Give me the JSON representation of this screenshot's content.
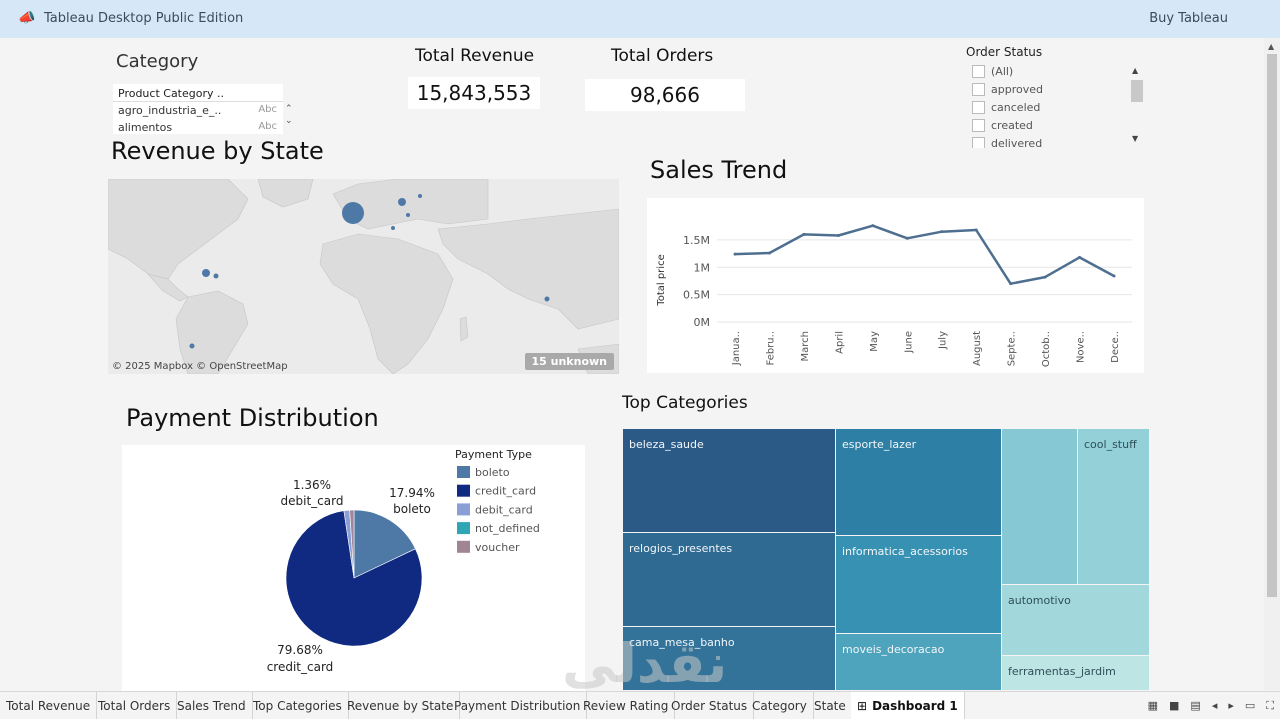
{
  "app": {
    "title": "Tableau Desktop Public Edition",
    "buy_label": "Buy Tableau"
  },
  "category_filter": {
    "title": "Category",
    "header": "Product Category ..",
    "rows": [
      {
        "label": "agro_industria_e_..",
        "type": "Abc"
      },
      {
        "label": "alimentos",
        "type": "Abc"
      }
    ]
  },
  "kpis": {
    "revenue": {
      "title": "Total Revenue",
      "value": "15,843,553"
    },
    "orders": {
      "title": "Total Orders",
      "value": "98,666"
    }
  },
  "order_status": {
    "title": "Order Status",
    "items": [
      "(All)",
      "approved",
      "canceled",
      "created",
      "delivered"
    ]
  },
  "map": {
    "title": "Revenue by State",
    "credit": "© 2025 Mapbox © OpenStreetMap",
    "unknown_badge": "15 unknown",
    "mark_color": "#4e79a7"
  },
  "chart_data": [
    {
      "type": "line",
      "title": "Sales Trend",
      "ylabel": "Total price",
      "categories": [
        "Janua..",
        "Febru..",
        "March",
        "April",
        "May",
        "June",
        "July",
        "August",
        "Septe..",
        "Octob..",
        "Nove..",
        "Dece.."
      ],
      "values": [
        1.24,
        1.26,
        1.6,
        1.58,
        1.76,
        1.53,
        1.65,
        1.68,
        0.7,
        0.82,
        1.18,
        0.84
      ],
      "unit": "M",
      "y_ticks": [
        "0M",
        "0.5M",
        "1M",
        "1.5M"
      ],
      "ylim": [
        0,
        1.9
      ],
      "grid": true,
      "color": "#4e6f8f"
    },
    {
      "type": "pie",
      "title": "Payment Distribution",
      "legend_title": "Payment Type",
      "slices": [
        {
          "name": "boleto",
          "value": 17.94,
          "label": "17.94%",
          "color": "#4e79a7"
        },
        {
          "name": "credit_card",
          "value": 79.68,
          "label": "79.68%",
          "color": "#0f2a80"
        },
        {
          "name": "debit_card",
          "value": 1.36,
          "label": "1.36%",
          "color": "#8b9fd6"
        },
        {
          "name": "not_defined",
          "value": 0.0,
          "label": "",
          "color": "#2fa6b5"
        },
        {
          "name": "voucher",
          "value": 1.02,
          "label": "",
          "color": "#a18595"
        }
      ]
    }
  ],
  "top_categories": {
    "title": "Top Categories",
    "tiles": [
      "beleza_saude",
      "relogios_presentes",
      "cama_mesa_banho",
      "esporte_lazer",
      "informatica_acessorios",
      "moveis_decoracao",
      "cool_stuff",
      "automotivo",
      "ferramentas_jardim"
    ]
  },
  "tabs": [
    "Total Revenue",
    "Total Orders",
    "Sales Trend",
    "Top Categories",
    "Revenue by State",
    "Payment Distribution",
    "Review Rating",
    "Order Status",
    "Category",
    "State",
    "Dashboard 1"
  ],
  "watermark": "نقدلي"
}
